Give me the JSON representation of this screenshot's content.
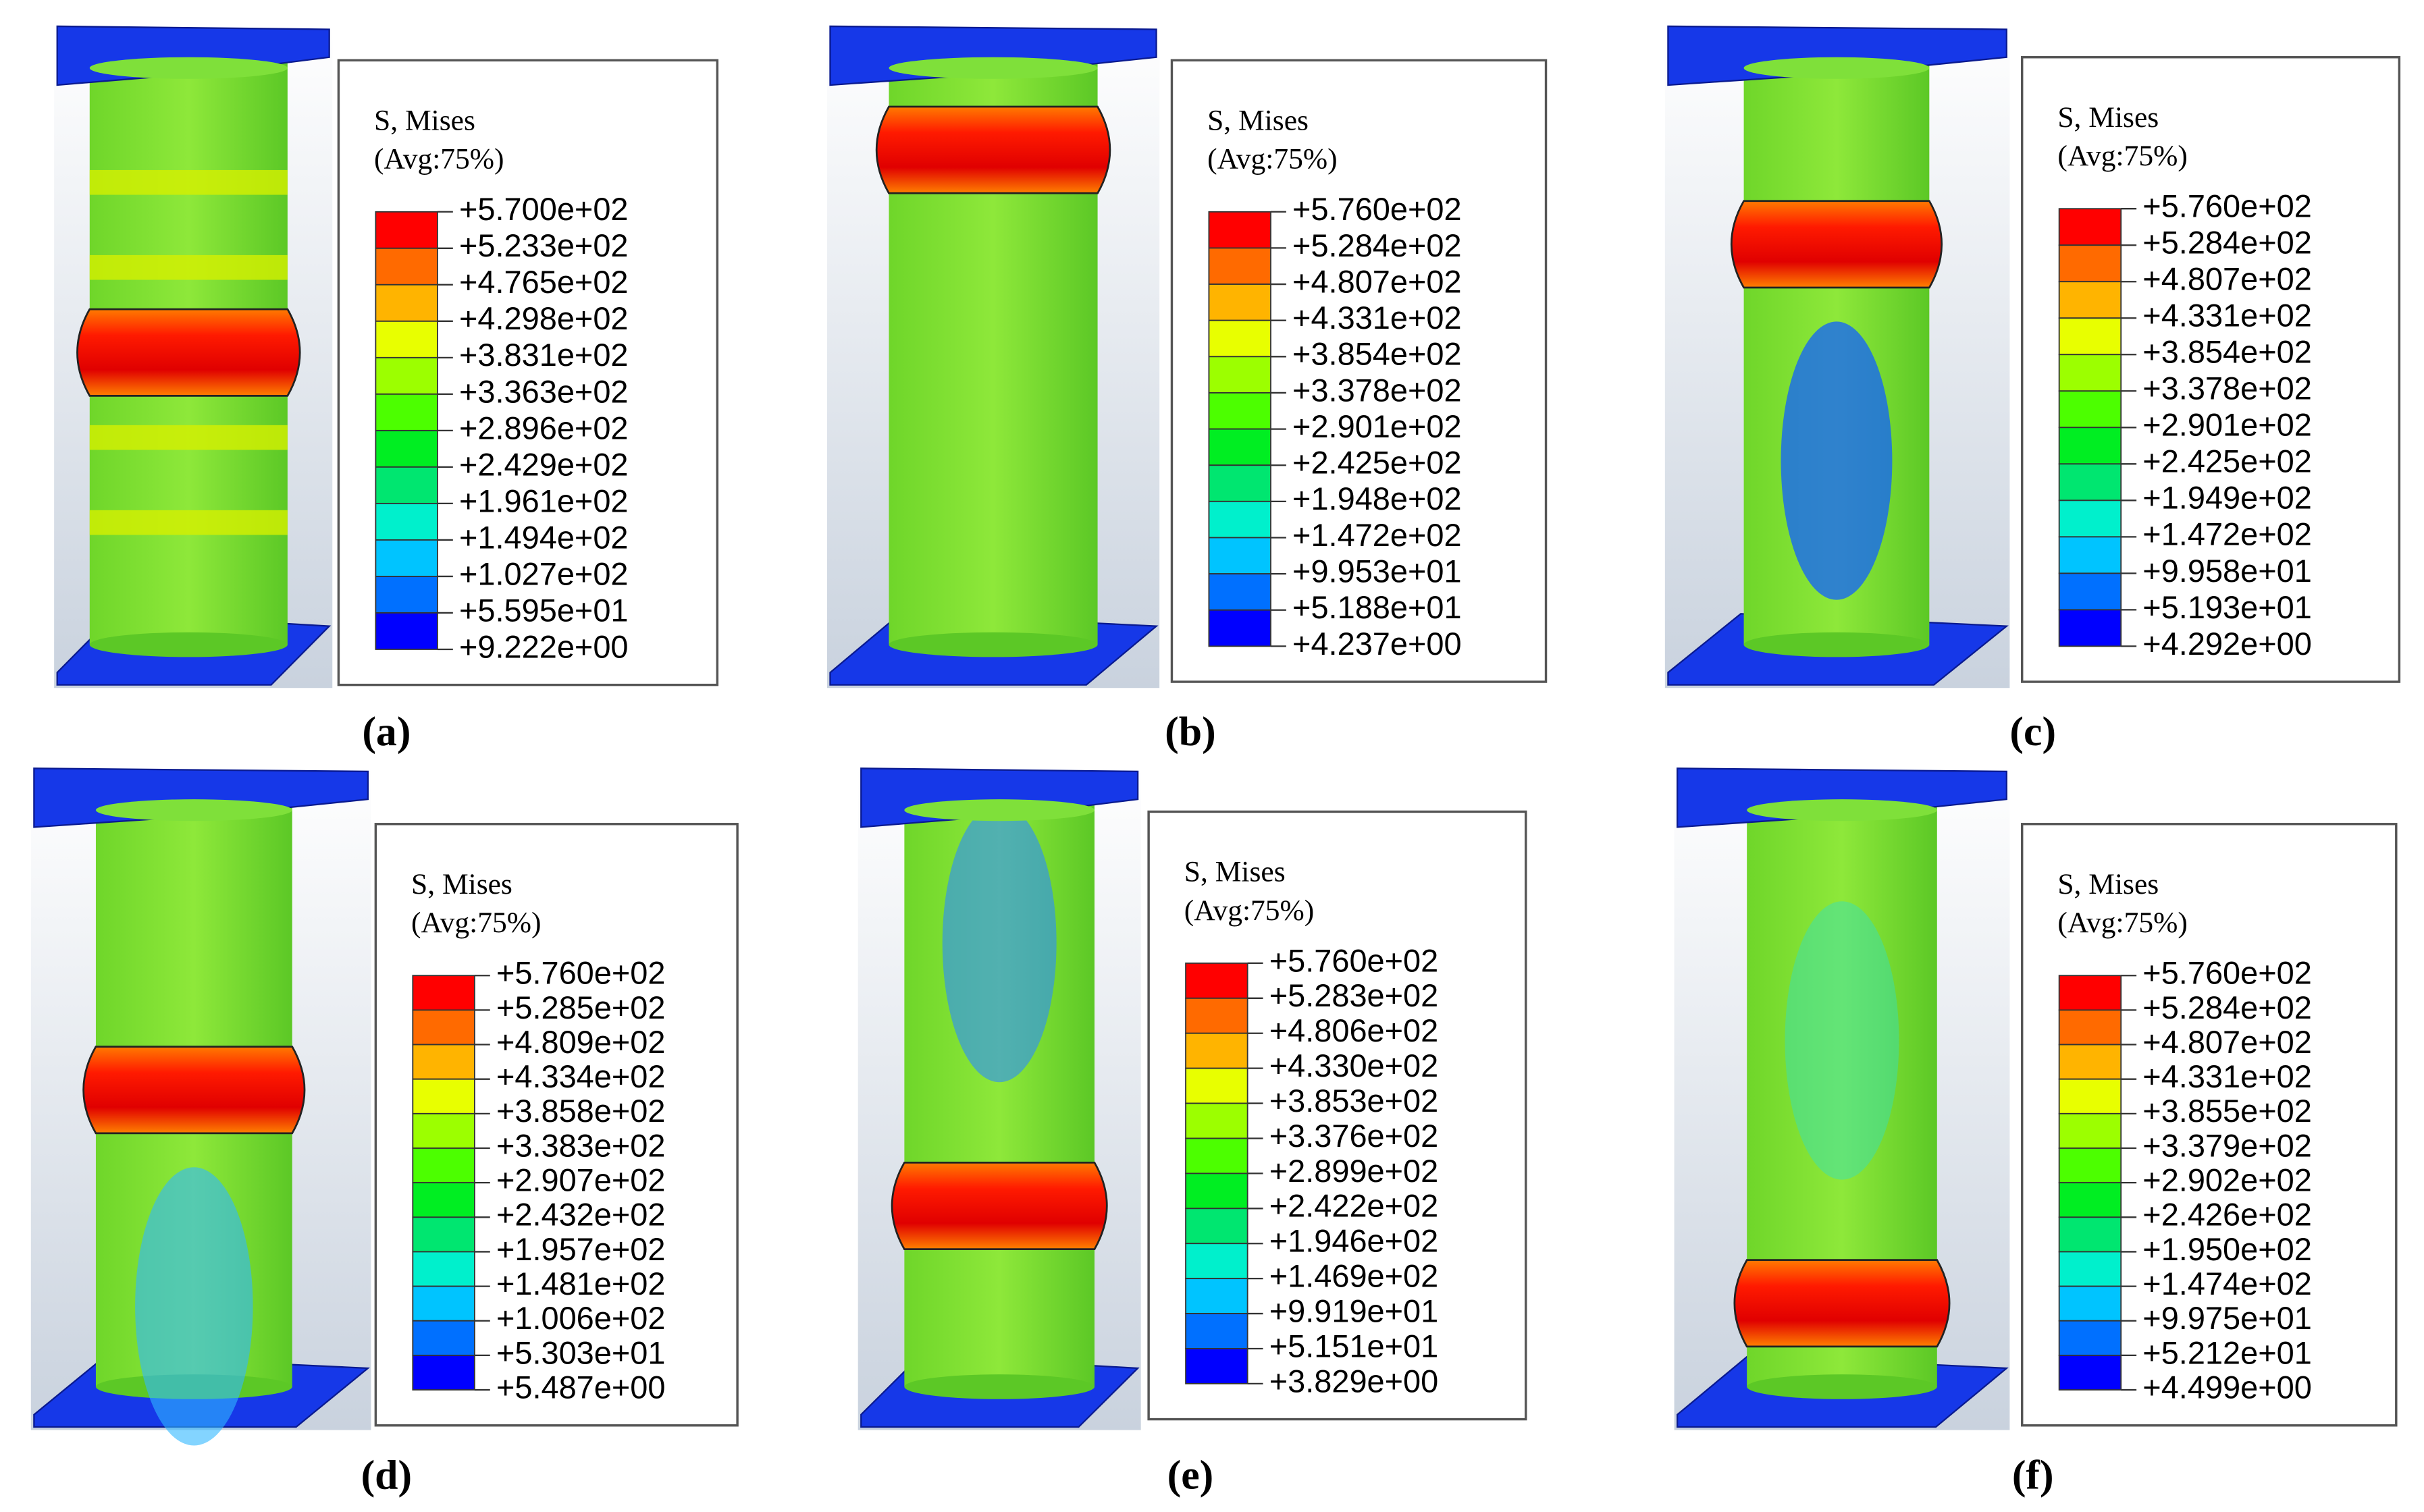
{
  "legend_colors": [
    "#ff0000",
    "#ff6a00",
    "#ffb400",
    "#e8ff00",
    "#9cff00",
    "#4cff00",
    "#00ee22",
    "#00e670",
    "#00f0cc",
    "#00c4ff",
    "#0070ff",
    "#0000ff"
  ],
  "panels": [
    {
      "label": "(a)",
      "legend_title": [
        "S, Mises",
        "(Avg:75%)"
      ],
      "legend_values": [
        "+5.700e+02",
        "+5.233e+02",
        "+4.765e+02",
        "+4.298e+02",
        "+3.831e+02",
        "+3.363e+02",
        "+2.896e+02",
        "+2.429e+02",
        "+1.961e+02",
        "+1.494e+02",
        "+1.027e+02",
        "+5.595e+01",
        "+9.222e+00"
      ]
    },
    {
      "label": "(b)",
      "legend_title": [
        "S, Mises",
        "(Avg:75%)"
      ],
      "legend_values": [
        "+5.760e+02",
        "+5.284e+02",
        "+4.807e+02",
        "+4.331e+02",
        "+3.854e+02",
        "+3.378e+02",
        "+2.901e+02",
        "+2.425e+02",
        "+1.948e+02",
        "+1.472e+02",
        "+9.953e+01",
        "+5.188e+01",
        "+4.237e+00"
      ]
    },
    {
      "label": "(c)",
      "legend_title": [
        "S, Mises",
        "(Avg:75%)"
      ],
      "legend_values": [
        "+5.760e+02",
        "+5.284e+02",
        "+4.807e+02",
        "+4.331e+02",
        "+3.854e+02",
        "+3.378e+02",
        "+2.901e+02",
        "+2.425e+02",
        "+1.949e+02",
        "+1.472e+02",
        "+9.958e+01",
        "+5.193e+01",
        "+4.292e+00"
      ]
    },
    {
      "label": "(d)",
      "legend_title": [
        "S, Mises",
        "(Avg:75%)"
      ],
      "legend_values": [
        "+5.760e+02",
        "+5.285e+02",
        "+4.809e+02",
        "+4.334e+02",
        "+3.858e+02",
        "+3.383e+02",
        "+2.907e+02",
        "+2.432e+02",
        "+1.957e+02",
        "+1.481e+02",
        "+1.006e+02",
        "+5.303e+01",
        "+5.487e+00"
      ]
    },
    {
      "label": "(e)",
      "legend_title": [
        "S, Mises",
        "(Avg:75%)"
      ],
      "legend_values": [
        "+5.760e+02",
        "+5.283e+02",
        "+4.806e+02",
        "+4.330e+02",
        "+3.853e+02",
        "+3.376e+02",
        "+2.899e+02",
        "+2.422e+02",
        "+1.946e+02",
        "+1.469e+02",
        "+9.919e+01",
        "+5.151e+01",
        "+3.829e+00"
      ]
    },
    {
      "label": "(f)",
      "legend_title": [
        "S, Mises",
        "(Avg:75%)"
      ],
      "legend_values": [
        "+5.760e+02",
        "+5.284e+02",
        "+4.807e+02",
        "+4.331e+02",
        "+3.855e+02",
        "+3.379e+02",
        "+2.902e+02",
        "+2.426e+02",
        "+1.950e+02",
        "+1.474e+02",
        "+9.975e+01",
        "+5.212e+01",
        "+4.499e+00"
      ]
    }
  ]
}
